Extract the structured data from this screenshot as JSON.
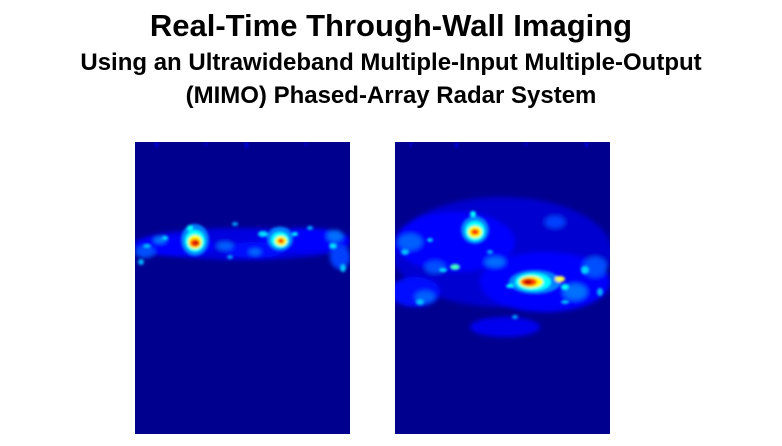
{
  "title": {
    "line1": "Real-Time Through-Wall Imaging",
    "line2": "Using an Ultrawideband Multiple-Input Multiple-Output",
    "line3": "(MIMO) Phased-Array Radar System"
  },
  "colormap": {
    "background": "#00008f",
    "scale": [
      "#00008f",
      "#0000ff",
      "#0080ff",
      "#00ffff",
      "#80ff80",
      "#ffff00",
      "#ff8000",
      "#ff0000",
      "#800000"
    ]
  }
}
